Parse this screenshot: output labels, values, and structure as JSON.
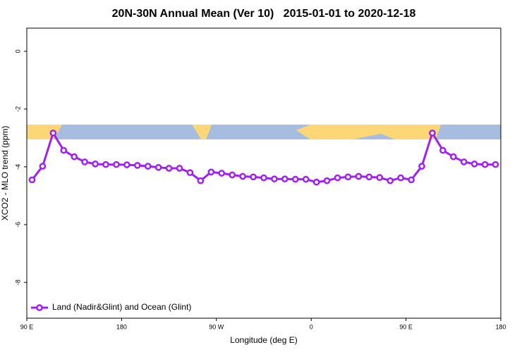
{
  "chart_data": {
    "type": "line",
    "title": "20N-30N Annual Mean (Ver 10)   2015-01-01 to 2020-12-18",
    "x_label": "Longitude (deg E)",
    "y_label": "XCO2 - MLO trend (ppm)",
    "x": [
      95,
      105,
      115,
      125,
      135,
      145,
      155,
      165,
      175,
      185,
      195,
      205,
      215,
      225,
      235,
      245,
      255,
      265,
      275,
      285,
      295,
      305,
      315,
      325,
      335,
      345,
      355,
      365,
      375,
      385,
      395,
      405,
      415,
      425,
      435,
      445,
      455,
      465,
      475,
      485,
      495,
      505,
      515,
      525,
      535
    ],
    "series": [
      {
        "name": "Land (Nadir&Glint) and Ocean (Glint)",
        "color": "#a020f0",
        "values": [
          -4.45,
          -3.98,
          -2.83,
          -3.43,
          -3.65,
          -3.83,
          -3.9,
          -3.92,
          -3.92,
          -3.93,
          -3.95,
          -3.98,
          -4.02,
          -4.05,
          -4.05,
          -4.2,
          -4.48,
          -4.18,
          -4.22,
          -4.28,
          -4.33,
          -4.35,
          -4.38,
          -4.42,
          -4.42,
          -4.43,
          -4.43,
          -4.53,
          -4.48,
          -4.38,
          -4.35,
          -4.33,
          -4.35,
          -4.37,
          -4.48,
          -4.38,
          -4.45,
          -3.98,
          -2.83,
          -3.43,
          -3.65,
          -3.83,
          -3.9,
          -3.92,
          -3.92
        ]
      }
    ],
    "xlim": [
      90,
      540
    ],
    "xticks": [
      {
        "value": 90,
        "label": "90 E"
      },
      180,
      {
        "value": 270,
        "label": "90 W"
      },
      {
        "value": 360,
        "label": "0"
      },
      {
        "value": 450,
        "label": "90 E"
      },
      {
        "value": 540,
        "label": "180"
      }
    ],
    "ylim": [
      -9.24,
      0.8
    ],
    "yticks": [
      0,
      -2,
      -4,
      -6,
      -8
    ],
    "legend": "bottomleft"
  }
}
